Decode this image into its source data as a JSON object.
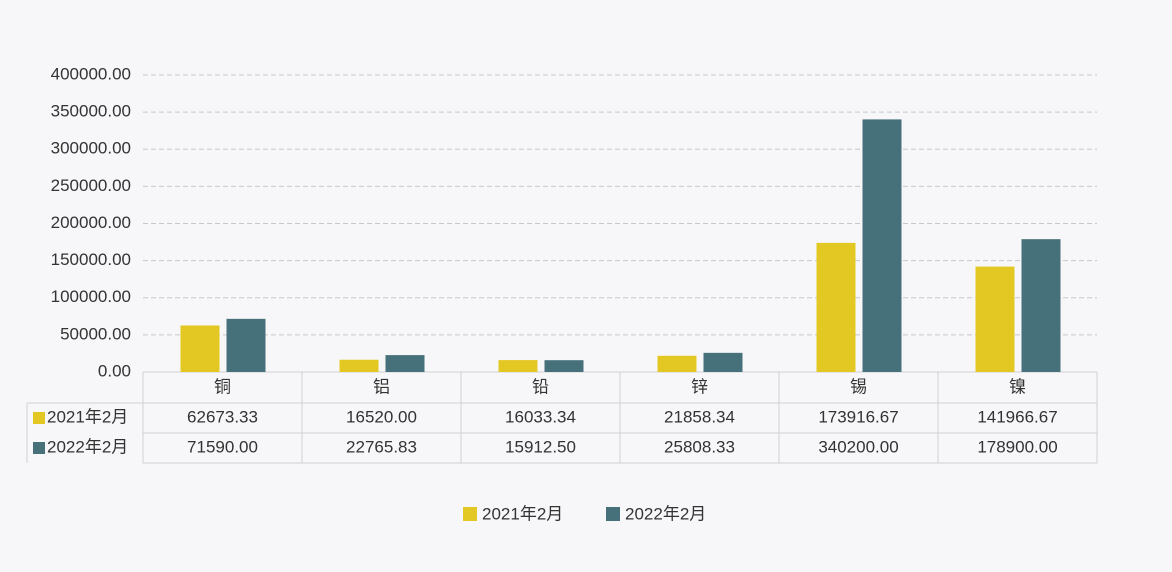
{
  "chart_data": {
    "type": "bar",
    "categories": [
      "铜",
      "铝",
      "铅",
      "锌",
      "锡",
      "镍"
    ],
    "series": [
      {
        "name": "2021年2月",
        "color": "#e3c824",
        "values": [
          62673.33,
          16520,
          16033.34,
          21858.34,
          173916.67,
          141966.67
        ],
        "value_labels": [
          "62673.33",
          "16520.00",
          "16033.34",
          "21858.34",
          "173916.67",
          "141966.67"
        ]
      },
      {
        "name": "2022年2月",
        "color": "#47717a",
        "values": [
          71590,
          22765.83,
          15912.5,
          25808.33,
          340200,
          178900
        ],
        "value_labels": [
          "71590.00",
          "22765.83",
          "15912.50",
          "25808.33",
          "340200.00",
          "178900.00"
        ]
      }
    ],
    "ylim": [
      0,
      400000
    ],
    "yticks": [
      {
        "value": 0,
        "label": "0.00"
      },
      {
        "value": 50000,
        "label": "50000.00"
      },
      {
        "value": 100000,
        "label": "100000.00"
      },
      {
        "value": 150000,
        "label": "150000.00"
      },
      {
        "value": 200000,
        "label": "200000.00"
      },
      {
        "value": 250000,
        "label": "250000.00"
      },
      {
        "value": 300000,
        "label": "300000.00"
      },
      {
        "value": 350000,
        "label": "350000.00"
      },
      {
        "value": 400000,
        "label": "400000.00"
      }
    ],
    "grid": true,
    "legend": "bottom"
  }
}
